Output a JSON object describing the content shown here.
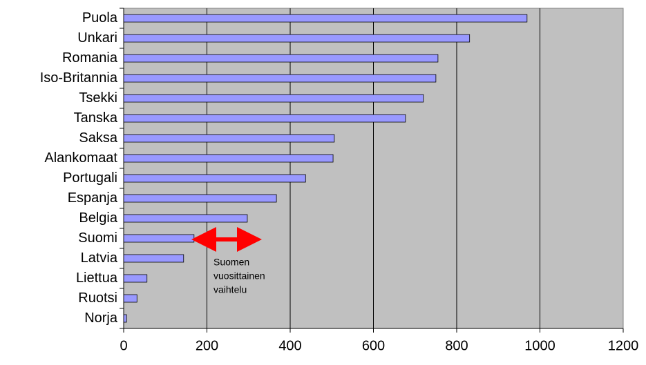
{
  "chart_data": {
    "type": "barh",
    "categories": [
      "Puola",
      "Unkari",
      "Romania",
      "Iso-Britannia",
      "Tsekki",
      "Tanska",
      "Saksa",
      "Alankomaat",
      "Portugali",
      "Espanja",
      "Belgia",
      "Suomi",
      "Latvia",
      "Liettua",
      "Ruotsi",
      "Norja"
    ],
    "values": [
      969,
      831,
      755,
      750,
      720,
      677,
      506,
      503,
      437,
      367,
      297,
      169,
      144,
      56,
      32,
      7
    ],
    "color": "#9999ff",
    "xlim": [
      0,
      1200
    ],
    "xticks": [
      0,
      200,
      400,
      600,
      800,
      1000,
      1200
    ],
    "grid": true,
    "annotation": [
      "Suomen",
      "vuosittainen",
      "vaihtelu"
    ]
  }
}
